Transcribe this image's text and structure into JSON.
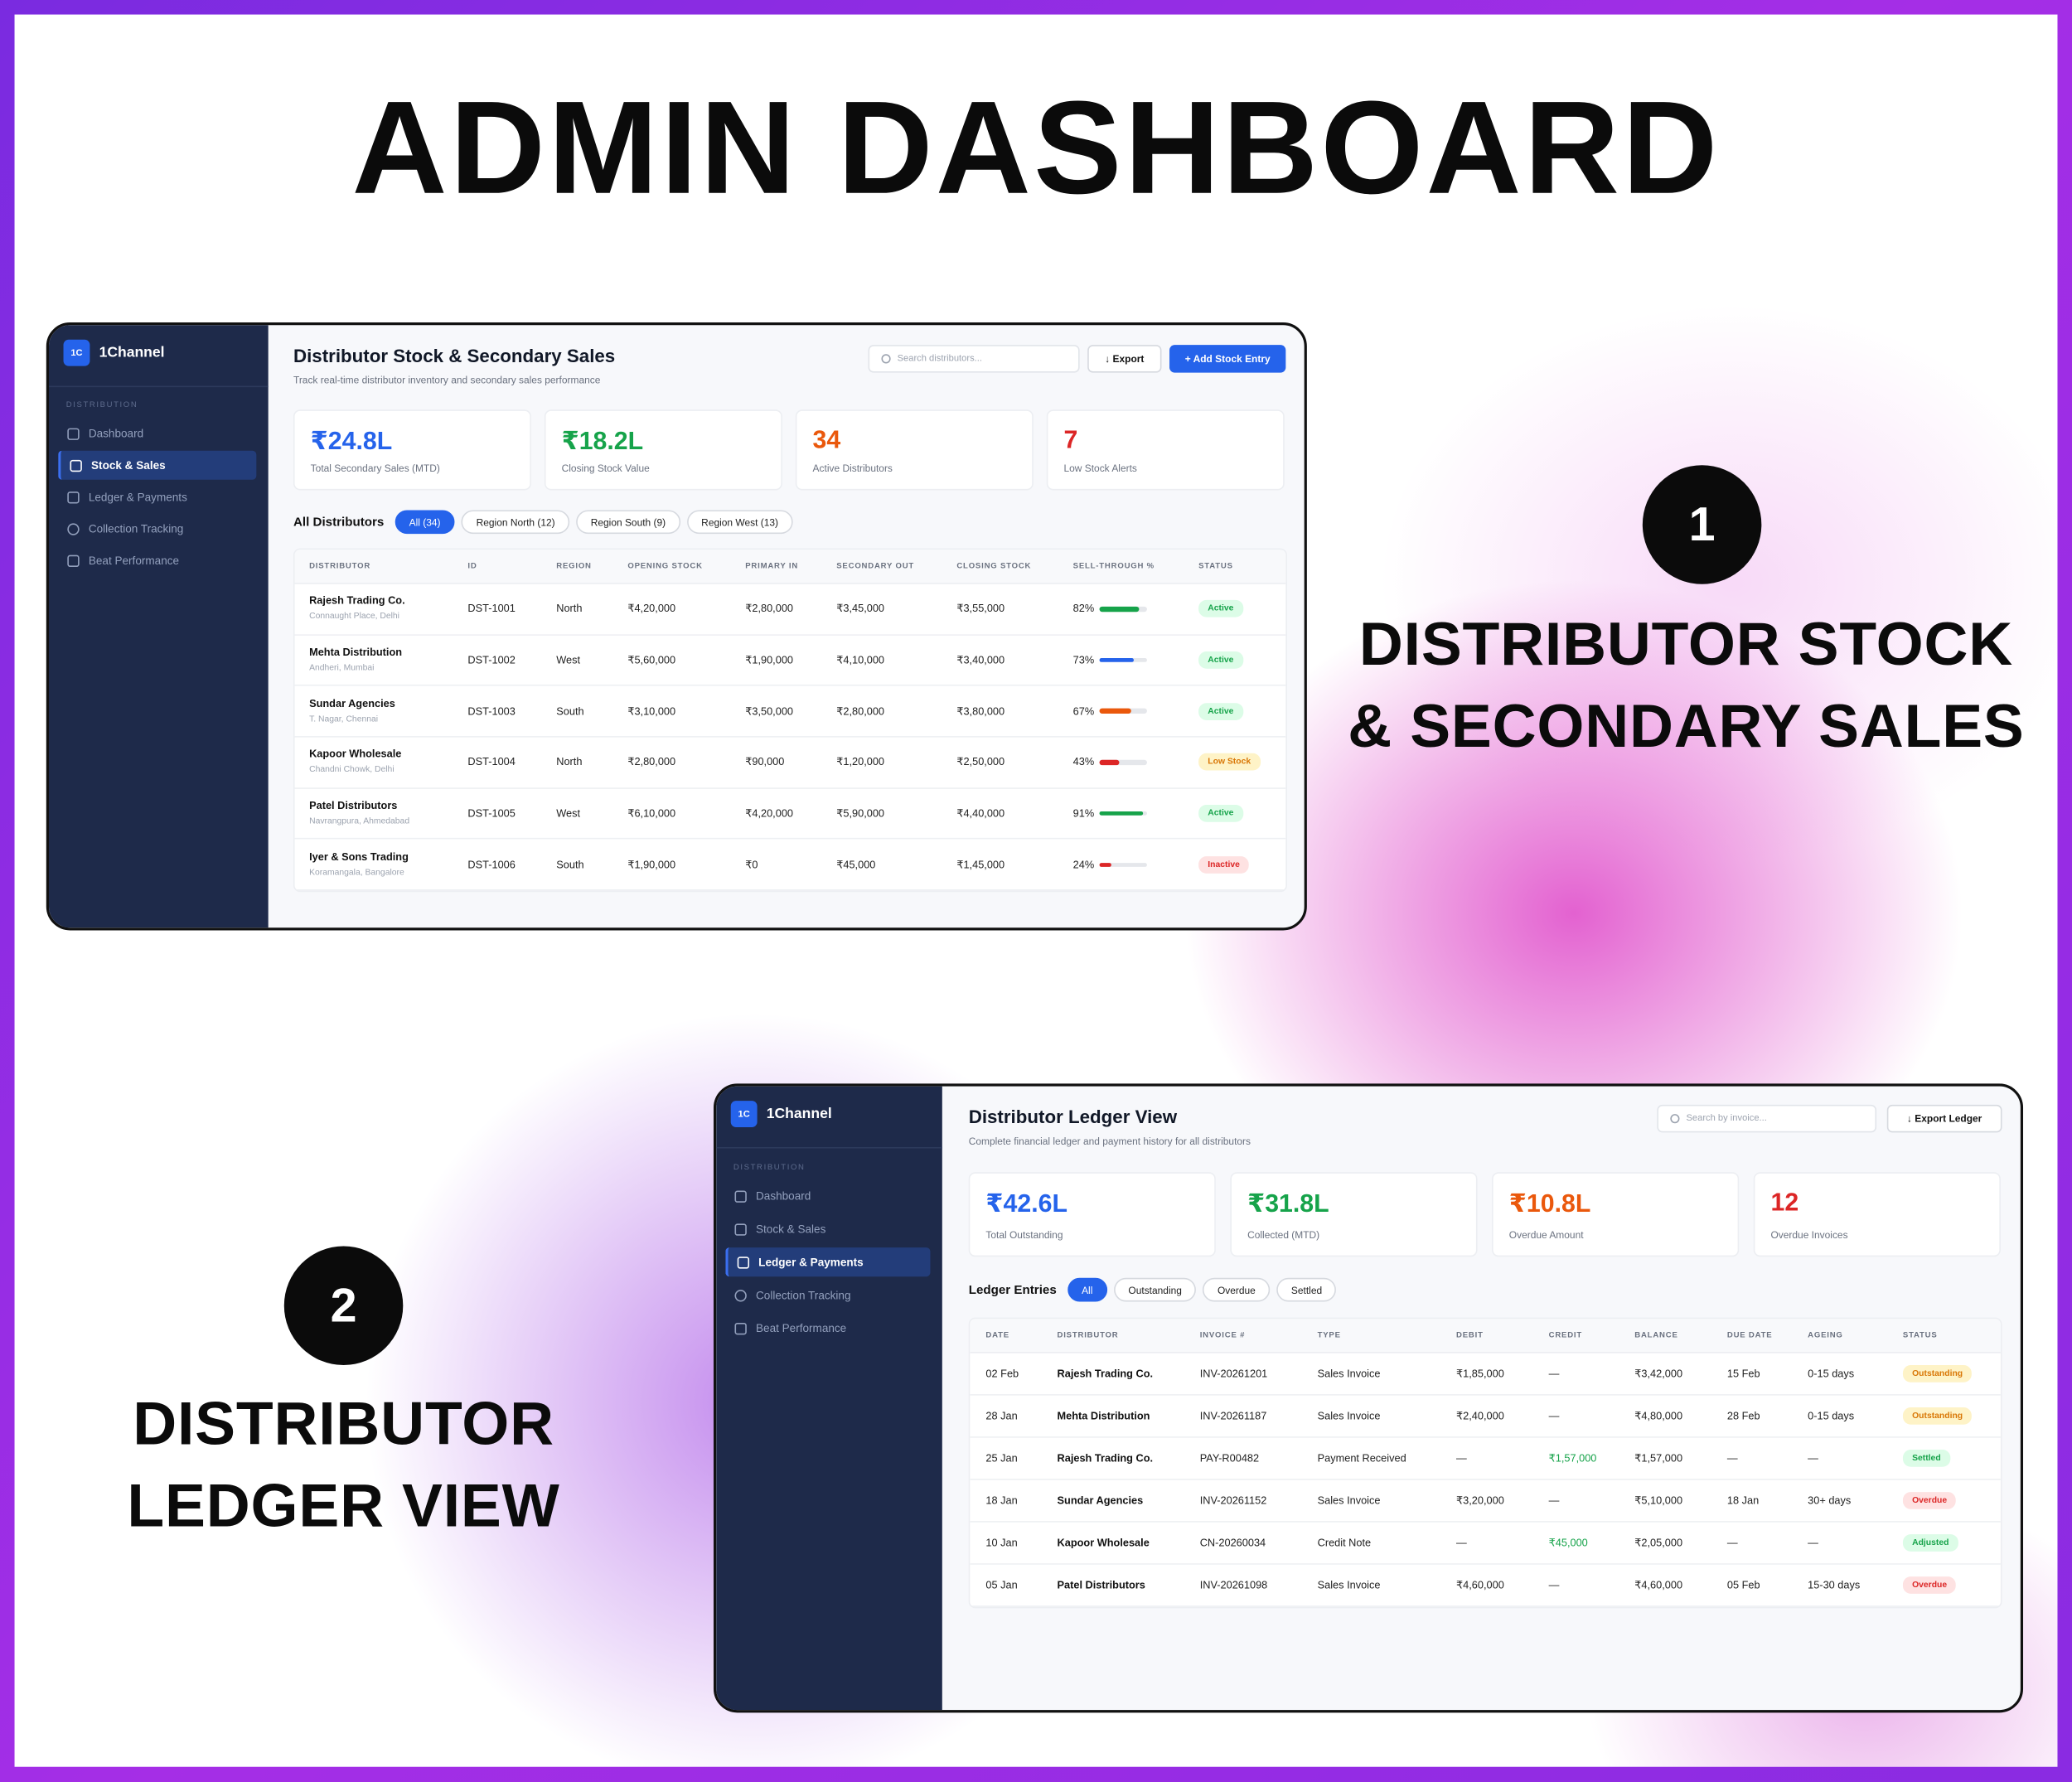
{
  "page_title": "ADMIN DASHBOARD",
  "sections": [
    {
      "number": "1",
      "lines": [
        "DISTRIBUTOR STOCK",
        "& SECONDARY SALES"
      ]
    },
    {
      "number": "2",
      "lines": [
        "DISTRIBUTOR",
        "LEDGER VIEW"
      ]
    }
  ],
  "sidebar": {
    "logo_mark": "1C",
    "brand": "1Channel",
    "section": "DISTRIBUTION",
    "items": [
      {
        "label": "Dashboard",
        "icon": "grid-icon"
      },
      {
        "label": "Stock & Sales",
        "icon": "box-icon"
      },
      {
        "label": "Ledger & Payments",
        "icon": "clipboard-icon"
      },
      {
        "label": "Collection Tracking",
        "icon": "clock-icon"
      },
      {
        "label": "Beat Performance",
        "icon": "bar-chart-icon"
      }
    ]
  },
  "stock": {
    "title": "Distributor Stock & Secondary Sales",
    "subtitle": "Track real-time distributor inventory and secondary sales performance",
    "search_placeholder": "Search distributors...",
    "export_label": "↓ Export",
    "add_label": "+ Add Stock Entry",
    "active_nav": 1,
    "kpis": [
      {
        "value": "₹24.8L",
        "label": "Total Secondary Sales (MTD)",
        "color": "#2563eb"
      },
      {
        "value": "₹18.2L",
        "label": "Closing Stock Value",
        "color": "#16a34a"
      },
      {
        "value": "34",
        "label": "Active Distributors",
        "color": "#ea580c"
      },
      {
        "value": "7",
        "label": "Low Stock Alerts",
        "color": "#dc2626"
      }
    ],
    "filter_heading": "All Distributors",
    "filters": [
      "All (34)",
      "Region North (12)",
      "Region South (9)",
      "Region West (13)"
    ],
    "columns": [
      "DISTRIBUTOR",
      "ID",
      "REGION",
      "OPENING STOCK",
      "PRIMARY IN",
      "SECONDARY OUT",
      "CLOSING STOCK",
      "SELL-THROUGH %",
      "STATUS"
    ],
    "rows": [
      {
        "name": "Rajesh Trading Co.",
        "location": "Connaught Place, Delhi",
        "id": "DST-1001",
        "region": "North",
        "opening": "₹4,20,000",
        "primary": "₹2,80,000",
        "secondary": "₹3,45,000",
        "closing": "₹3,55,000",
        "sell_through": "82%",
        "sell_through_value": 82,
        "bar_color": "#16a34a",
        "status": "Active"
      },
      {
        "name": "Mehta Distribution",
        "location": "Andheri, Mumbai",
        "id": "DST-1002",
        "region": "West",
        "opening": "₹5,60,000",
        "primary": "₹1,90,000",
        "secondary": "₹4,10,000",
        "closing": "₹3,40,000",
        "sell_through": "73%",
        "sell_through_value": 73,
        "bar_color": "#2563eb",
        "status": "Active"
      },
      {
        "name": "Sundar Agencies",
        "location": "T. Nagar, Chennai",
        "id": "DST-1003",
        "region": "South",
        "opening": "₹3,10,000",
        "primary": "₹3,50,000",
        "secondary": "₹2,80,000",
        "closing": "₹3,80,000",
        "sell_through": "67%",
        "sell_through_value": 67,
        "bar_color": "#ea580c",
        "status": "Active"
      },
      {
        "name": "Kapoor Wholesale",
        "location": "Chandni Chowk, Delhi",
        "id": "DST-1004",
        "region": "North",
        "opening": "₹2,80,000",
        "primary": "₹90,000",
        "secondary": "₹1,20,000",
        "closing": "₹2,50,000",
        "sell_through": "43%",
        "sell_through_value": 43,
        "bar_color": "#dc2626",
        "status": "Low Stock"
      },
      {
        "name": "Patel Distributors",
        "location": "Navrangpura, Ahmedabad",
        "id": "DST-1005",
        "region": "West",
        "opening": "₹6,10,000",
        "primary": "₹4,20,000",
        "secondary": "₹5,90,000",
        "closing": "₹4,40,000",
        "sell_through": "91%",
        "sell_through_value": 91,
        "bar_color": "#16a34a",
        "status": "Active"
      },
      {
        "name": "Iyer & Sons Trading",
        "location": "Koramangala, Bangalore",
        "id": "DST-1006",
        "region": "South",
        "opening": "₹1,90,000",
        "primary": "₹0",
        "secondary": "₹45,000",
        "closing": "₹1,45,000",
        "sell_through": "24%",
        "sell_through_value": 24,
        "bar_color": "#dc2626",
        "status": "Inactive"
      }
    ]
  },
  "ledger": {
    "title": "Distributor Ledger View",
    "subtitle": "Complete financial ledger and payment history for all distributors",
    "search_placeholder": "Search by invoice...",
    "export_label": "↓ Export Ledger",
    "active_nav": 2,
    "kpis": [
      {
        "value": "₹42.6L",
        "label": "Total Outstanding",
        "color": "#2563eb"
      },
      {
        "value": "₹31.8L",
        "label": "Collected (MTD)",
        "color": "#16a34a"
      },
      {
        "value": "₹10.8L",
        "label": "Overdue Amount",
        "color": "#ea580c"
      },
      {
        "value": "12",
        "label": "Overdue Invoices",
        "color": "#dc2626"
      }
    ],
    "filter_heading": "Ledger Entries",
    "filters": [
      "All",
      "Outstanding",
      "Overdue",
      "Settled"
    ],
    "columns": [
      "DATE",
      "DISTRIBUTOR",
      "INVOICE #",
      "TYPE",
      "DEBIT",
      "CREDIT",
      "BALANCE",
      "DUE DATE",
      "AGEING",
      "STATUS"
    ],
    "rows": [
      {
        "date": "02 Feb",
        "distributor": "Rajesh Trading Co.",
        "invoice": "INV-20261201",
        "type": "Sales Invoice",
        "debit": "₹1,85,000",
        "credit": "—",
        "balance": "₹3,42,000",
        "due": "15 Feb",
        "ageing": "0-15 days",
        "status": "Outstanding"
      },
      {
        "date": "28 Jan",
        "distributor": "Mehta Distribution",
        "invoice": "INV-20261187",
        "type": "Sales Invoice",
        "debit": "₹2,40,000",
        "credit": "—",
        "balance": "₹4,80,000",
        "due": "28 Feb",
        "ageing": "0-15 days",
        "status": "Outstanding"
      },
      {
        "date": "25 Jan",
        "distributor": "Rajesh Trading Co.",
        "invoice": "PAY-R00482",
        "type": "Payment Received",
        "debit": "—",
        "credit": "₹1,57,000",
        "balance": "₹1,57,000",
        "due": "—",
        "ageing": "—",
        "status": "Settled"
      },
      {
        "date": "18 Jan",
        "distributor": "Sundar Agencies",
        "invoice": "INV-20261152",
        "type": "Sales Invoice",
        "debit": "₹3,20,000",
        "credit": "—",
        "balance": "₹5,10,000",
        "due": "18 Jan",
        "ageing": "30+ days",
        "status": "Overdue"
      },
      {
        "date": "10 Jan",
        "distributor": "Kapoor Wholesale",
        "invoice": "CN-20260034",
        "type": "Credit Note",
        "debit": "—",
        "credit": "₹45,000",
        "balance": "₹2,05,000",
        "due": "—",
        "ageing": "—",
        "status": "Adjusted"
      },
      {
        "date": "05 Jan",
        "distributor": "Patel Distributors",
        "invoice": "INV-20261098",
        "type": "Sales Invoice",
        "debit": "₹4,60,000",
        "credit": "—",
        "balance": "₹4,60,000",
        "due": "05 Feb",
        "ageing": "15-30 days",
        "status": "Overdue"
      }
    ]
  },
  "status_colors": {
    "Active": [
      "#dcfce7",
      "#16a34a"
    ],
    "Settled": [
      "#dcfce7",
      "#16a34a"
    ],
    "Adjusted": [
      "#dcfce7",
      "#16a34a"
    ],
    "Low Stock": [
      "#fef3c7",
      "#d97706"
    ],
    "Outstanding": [
      "#fef3c7",
      "#d97706"
    ],
    "Inactive": [
      "#fee2e2",
      "#dc2626"
    ],
    "Overdue": [
      "#fee2e2",
      "#dc2626"
    ]
  }
}
